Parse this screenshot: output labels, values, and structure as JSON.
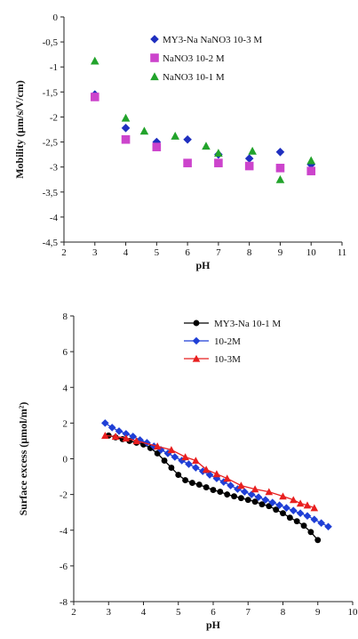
{
  "chart_data": [
    {
      "type": "scatter",
      "xlabel": "pH",
      "ylabel": "Mobility (µm/s/V/cm)",
      "xlim": [
        2,
        11
      ],
      "ylim": [
        -4.5,
        0
      ],
      "xticks": [
        "2",
        "3",
        "4",
        "5",
        "6",
        "7",
        "8",
        "9",
        "10",
        "11"
      ],
      "yticks": [
        "0",
        "-0,5",
        "-1",
        "-1,5",
        "-2",
        "-2,5",
        "-3",
        "-3,5",
        "-4",
        "-4,5"
      ],
      "legend": "top-right",
      "grid": false,
      "series": [
        {
          "name": "MY3-Na NaNO3 10-3 M",
          "marker": "diamond",
          "color": "#1f2fbf",
          "points": [
            [
              3,
              -1.55
            ],
            [
              4,
              -2.22
            ],
            [
              5,
              -2.5
            ],
            [
              6,
              -2.45
            ],
            [
              7,
              -2.75
            ],
            [
              8,
              -2.83
            ],
            [
              9,
              -2.7
            ],
            [
              10,
              -2.95
            ]
          ]
        },
        {
          "name": "NaNO3 10-2 M",
          "marker": "square",
          "color": "#cc44cc",
          "points": [
            [
              3,
              -1.6
            ],
            [
              4,
              -2.45
            ],
            [
              5,
              -2.6
            ],
            [
              6,
              -2.92
            ],
            [
              7,
              -2.92
            ],
            [
              8,
              -2.98
            ],
            [
              9,
              -3.02
            ],
            [
              10,
              -3.08
            ]
          ]
        },
        {
          "name": "NaNO3 10-1 M",
          "marker": "triangle",
          "color": "#22a32b",
          "points": [
            [
              3,
              -0.88
            ],
            [
              4,
              -2.02
            ],
            [
              4.6,
              -2.28
            ],
            [
              5.6,
              -2.38
            ],
            [
              6.6,
              -2.58
            ],
            [
              7,
              -2.72
            ],
            [
              8.1,
              -2.68
            ],
            [
              9,
              -3.25
            ],
            [
              10,
              -2.87
            ]
          ]
        }
      ]
    },
    {
      "type": "line",
      "xlabel": "pH",
      "ylabel": "Surface excess (µmol/m²)",
      "xlim": [
        2,
        10
      ],
      "ylim": [
        -8,
        8
      ],
      "xticks": [
        "2",
        "3",
        "4",
        "5",
        "6",
        "7",
        "8",
        "9",
        "10"
      ],
      "yticks": [
        "8",
        "6",
        "4",
        "2",
        "0",
        "-2",
        "-4",
        "-6",
        "-8"
      ],
      "legend": "top-right",
      "grid": false,
      "series": [
        {
          "name": "MY3-Na 10-1 M",
          "marker": "circle",
          "color": "#000000",
          "points": [
            [
              3.0,
              1.3
            ],
            [
              3.2,
              1.2
            ],
            [
              3.4,
              1.1
            ],
            [
              3.6,
              1.0
            ],
            [
              3.8,
              0.9
            ],
            [
              4.0,
              0.8
            ],
            [
              4.2,
              0.6
            ],
            [
              4.4,
              0.3
            ],
            [
              4.6,
              -0.1
            ],
            [
              4.8,
              -0.5
            ],
            [
              5.0,
              -0.9
            ],
            [
              5.2,
              -1.2
            ],
            [
              5.4,
              -1.35
            ],
            [
              5.6,
              -1.45
            ],
            [
              5.8,
              -1.6
            ],
            [
              6.0,
              -1.75
            ],
            [
              6.2,
              -1.85
            ],
            [
              6.4,
              -2.0
            ],
            [
              6.6,
              -2.1
            ],
            [
              6.8,
              -2.2
            ],
            [
              7.0,
              -2.3
            ],
            [
              7.2,
              -2.4
            ],
            [
              7.4,
              -2.55
            ],
            [
              7.6,
              -2.65
            ],
            [
              7.8,
              -2.85
            ],
            [
              8.0,
              -3.05
            ],
            [
              8.2,
              -3.3
            ],
            [
              8.4,
              -3.5
            ],
            [
              8.6,
              -3.75
            ],
            [
              8.8,
              -4.1
            ],
            [
              9.0,
              -4.55
            ]
          ]
        },
        {
          "name": "10-2M",
          "marker": "diamond",
          "color": "#1f3fd6",
          "points": [
            [
              2.9,
              2.0
            ],
            [
              3.1,
              1.75
            ],
            [
              3.3,
              1.55
            ],
            [
              3.5,
              1.4
            ],
            [
              3.7,
              1.25
            ],
            [
              3.9,
              1.05
            ],
            [
              4.1,
              0.9
            ],
            [
              4.3,
              0.7
            ],
            [
              4.5,
              0.5
            ],
            [
              4.7,
              0.3
            ],
            [
              4.9,
              0.1
            ],
            [
              5.1,
              -0.1
            ],
            [
              5.3,
              -0.3
            ],
            [
              5.5,
              -0.5
            ],
            [
              5.7,
              -0.7
            ],
            [
              5.9,
              -0.9
            ],
            [
              6.1,
              -1.1
            ],
            [
              6.3,
              -1.3
            ],
            [
              6.5,
              -1.5
            ],
            [
              6.7,
              -1.7
            ],
            [
              6.9,
              -1.85
            ],
            [
              7.1,
              -2.0
            ],
            [
              7.3,
              -2.15
            ],
            [
              7.5,
              -2.3
            ],
            [
              7.7,
              -2.45
            ],
            [
              7.9,
              -2.6
            ],
            [
              8.1,
              -2.75
            ],
            [
              8.3,
              -2.9
            ],
            [
              8.5,
              -3.05
            ],
            [
              8.7,
              -3.2
            ],
            [
              8.9,
              -3.4
            ],
            [
              9.1,
              -3.6
            ],
            [
              9.3,
              -3.8
            ]
          ]
        },
        {
          "name": "10-3M",
          "marker": "triangle",
          "color": "#e81f1f",
          "points": [
            [
              2.9,
              1.3
            ],
            [
              3.2,
              1.25
            ],
            [
              3.5,
              1.15
            ],
            [
              3.8,
              1.0
            ],
            [
              4.4,
              0.7
            ],
            [
              4.8,
              0.5
            ],
            [
              5.2,
              0.1
            ],
            [
              5.5,
              -0.1
            ],
            [
              5.8,
              -0.6
            ],
            [
              6.1,
              -0.85
            ],
            [
              6.4,
              -1.1
            ],
            [
              6.8,
              -1.5
            ],
            [
              7.2,
              -1.7
            ],
            [
              7.6,
              -1.85
            ],
            [
              8.0,
              -2.1
            ],
            [
              8.3,
              -2.3
            ],
            [
              8.5,
              -2.5
            ],
            [
              8.7,
              -2.6
            ],
            [
              8.9,
              -2.75
            ]
          ]
        }
      ]
    }
  ]
}
